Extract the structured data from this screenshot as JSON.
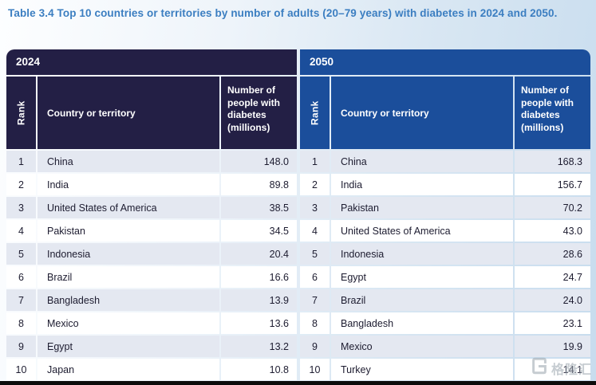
{
  "title": "Table 3.4 Top 10 countries or territories by number of adults (20–79 years) with diabetes in 2024 and 2050.",
  "tables": [
    {
      "year": "2024",
      "headers": {
        "rank": "Rank",
        "country": "Country or territory",
        "value": "Number of people with diabetes (millions)"
      },
      "rows": [
        {
          "rank": "1",
          "country": "China",
          "value": "148.0"
        },
        {
          "rank": "2",
          "country": "India",
          "value": "89.8"
        },
        {
          "rank": "3",
          "country": "United States of America",
          "value": "38.5"
        },
        {
          "rank": "4",
          "country": "Pakistan",
          "value": "34.5"
        },
        {
          "rank": "5",
          "country": "Indonesia",
          "value": "20.4"
        },
        {
          "rank": "6",
          "country": "Brazil",
          "value": "16.6"
        },
        {
          "rank": "7",
          "country": "Bangladesh",
          "value": "13.9"
        },
        {
          "rank": "8",
          "country": "Mexico",
          "value": "13.6"
        },
        {
          "rank": "9",
          "country": "Egypt",
          "value": "13.2"
        },
        {
          "rank": "10",
          "country": "Japan",
          "value": "10.8"
        }
      ]
    },
    {
      "year": "2050",
      "headers": {
        "rank": "Rank",
        "country": "Country or territory",
        "value": "Number of people with diabetes (millions)"
      },
      "rows": [
        {
          "rank": "1",
          "country": "China",
          "value": "168.3"
        },
        {
          "rank": "2",
          "country": "India",
          "value": "156.7"
        },
        {
          "rank": "3",
          "country": "Pakistan",
          "value": "70.2"
        },
        {
          "rank": "4",
          "country": "United States of America",
          "value": "43.0"
        },
        {
          "rank": "5",
          "country": "Indonesia",
          "value": "28.6"
        },
        {
          "rank": "6",
          "country": "Egypt",
          "value": "24.7"
        },
        {
          "rank": "7",
          "country": "Brazil",
          "value": "24.0"
        },
        {
          "rank": "8",
          "country": "Bangladesh",
          "value": "23.1"
        },
        {
          "rank": "9",
          "country": "Mexico",
          "value": "19.9"
        },
        {
          "rank": "10",
          "country": "Turkey",
          "value": "14.1"
        }
      ]
    }
  ],
  "watermark": {
    "text": "格隆汇"
  },
  "colors": {
    "header_2024": "#231f45",
    "header_2050": "#1b4e9b",
    "row_alt": "#e4e8f1",
    "title_text": "#3b7ec1",
    "body_text": "#1d1c30"
  }
}
